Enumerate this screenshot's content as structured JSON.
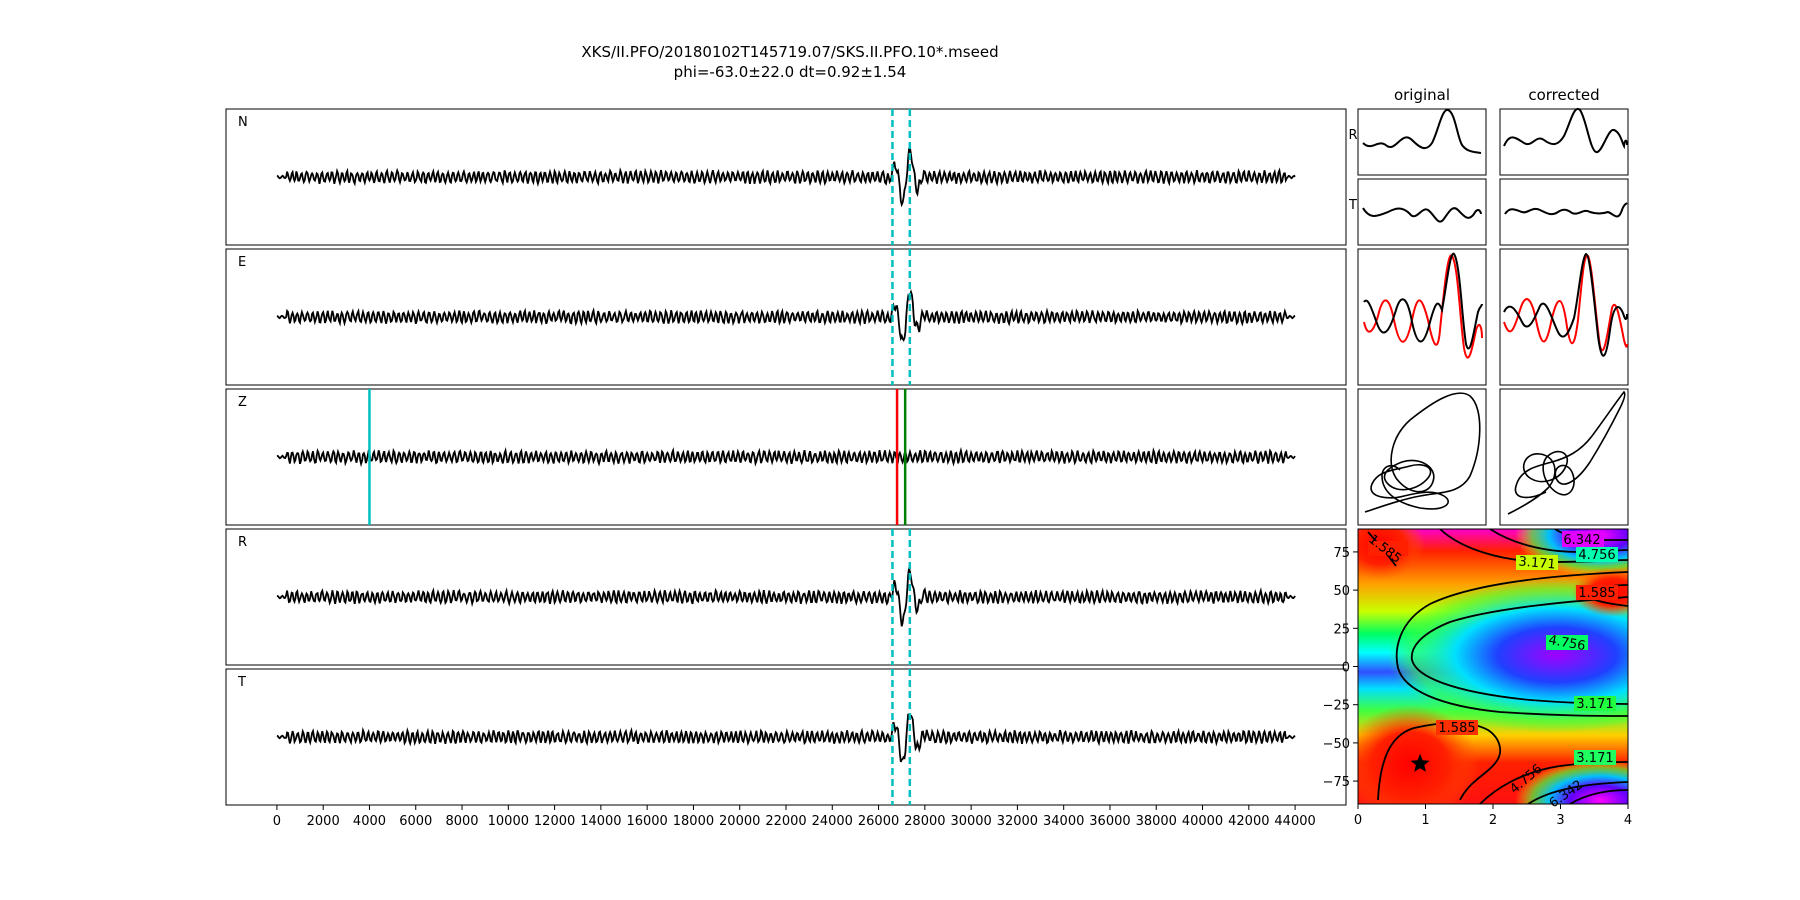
{
  "figure": {
    "title": "XKS/II.PFO/20180102T145719.07/SKS.II.PFO.10*.mseed",
    "subtitle": "phi=-63.0±22.0 dt=0.92±1.54"
  },
  "colors": {
    "trace": "#000000",
    "window_marker": "#00bfbf",
    "phase_start": "#00bfbf",
    "phase_red": "#ff0000",
    "phase_green": "#008000",
    "corrected_overlay": "#ff0000"
  },
  "chart_data": [
    {
      "type": "line",
      "title": "",
      "panels": [
        "N",
        "E",
        "Z",
        "R",
        "T"
      ],
      "xticks": [
        0,
        2000,
        4000,
        6000,
        8000,
        10000,
        12000,
        14000,
        16000,
        18000,
        20000,
        22000,
        24000,
        26000,
        28000,
        30000,
        32000,
        34000,
        36000,
        38000,
        40000,
        42000,
        44000
      ],
      "xlim": [
        -2200,
        46200
      ],
      "trace_x_range": [
        0,
        44000
      ],
      "event_x": 27200,
      "window_dashed_x": [
        26600,
        27350
      ],
      "z_markers": [
        {
          "x": 4000,
          "color": "#00bfbf"
        },
        {
          "x": 26800,
          "color": "#ff0000"
        },
        {
          "x": 27150,
          "color": "#008000"
        }
      ],
      "grid": false
    },
    {
      "type": "line",
      "column_titles": [
        "original",
        "corrected"
      ],
      "row_labels": [
        "R",
        "T"
      ],
      "panels": [
        "R",
        "T",
        "N/E overlay",
        "particle motion"
      ]
    },
    {
      "type": "heatmap",
      "xlim": [
        0,
        4
      ],
      "ylim": [
        -90,
        90
      ],
      "xticks": [
        0,
        1,
        2,
        3,
        4
      ],
      "yticks": [
        75,
        50,
        25,
        0,
        -25,
        -50,
        -75
      ],
      "colormap": "hsv",
      "contour_levels": [
        1.585,
        3.171,
        4.756,
        6.342
      ],
      "contour_labels": [
        "1.585",
        "3.171",
        "4.756",
        "6.342",
        "1.585",
        "4.756",
        "3.171",
        "1.585",
        "3.171",
        "4.756",
        "6.342"
      ],
      "best_fit": {
        "dt": 0.92,
        "phi": -63.0
      }
    }
  ]
}
